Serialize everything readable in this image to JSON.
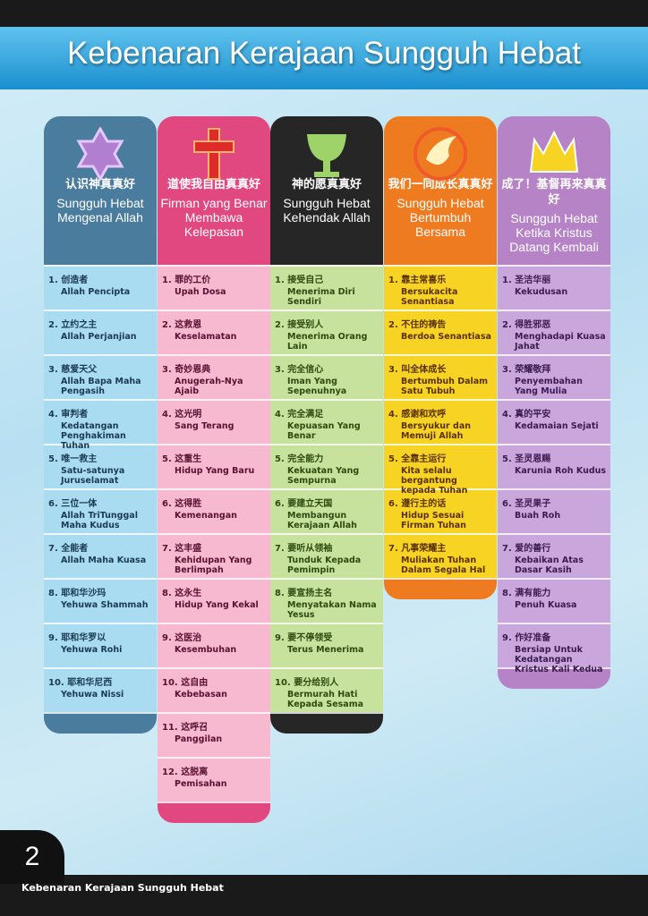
{
  "header": {
    "title": "Kebenaran Kerajaan Sungguh Hebat"
  },
  "columns": [
    {
      "cn": "认识神真真好",
      "ms": "Sungguh Hebat Mengenal Allah",
      "items": [
        {
          "no": "1.",
          "cn": "创造者",
          "ms": "Allah Pencipta"
        },
        {
          "no": "2.",
          "cn": "立约之主",
          "ms": "Allah Perjanjian"
        },
        {
          "no": "3.",
          "cn": "慈爱天父",
          "ms": "Allah Bapa Maha Pengasih"
        },
        {
          "no": "4.",
          "cn": "审判者",
          "ms": "Kedatangan Penghakiman Tuhan"
        },
        {
          "no": "5.",
          "cn": "唯一救主",
          "ms": "Satu-satunya Juruselamat"
        },
        {
          "no": "6.",
          "cn": "三位一体",
          "ms": "Allah TriTunggal Maha Kudus"
        },
        {
          "no": "7.",
          "cn": "全能者",
          "ms": "Allah Maha Kuasa"
        },
        {
          "no": "8.",
          "cn": "耶和华沙玛",
          "ms": "Yehuwa Shammah"
        },
        {
          "no": "9.",
          "cn": "耶和华罗以",
          "ms": "Yehuwa Rohi"
        },
        {
          "no": "10.",
          "cn": "耶和华尼西",
          "ms": "Yehuwa Nissi"
        }
      ]
    },
    {
      "cn": "道使我自由真真好",
      "ms": "Firman yang Benar Membawa Kelepasan",
      "items": [
        {
          "no": "1.",
          "cn": "罪的工价",
          "ms": "Upah Dosa"
        },
        {
          "no": "2.",
          "cn": "这救恩",
          "ms": "Keselamatan"
        },
        {
          "no": "3.",
          "cn": "奇妙恩典",
          "ms": "Anugerah-Nya Ajaib"
        },
        {
          "no": "4.",
          "cn": "这光明",
          "ms": "Sang Terang"
        },
        {
          "no": "5.",
          "cn": "这重生",
          "ms": "Hidup Yang Baru"
        },
        {
          "no": "6.",
          "cn": "这得胜",
          "ms": "Kemenangan"
        },
        {
          "no": "7.",
          "cn": "这丰盛",
          "ms": "Kehidupan Yang Berlimpah"
        },
        {
          "no": "8.",
          "cn": "这永生",
          "ms": "Hidup Yang Kekal"
        },
        {
          "no": "9.",
          "cn": "这医治",
          "ms": "Kesembuhan"
        },
        {
          "no": "10.",
          "cn": "这自由",
          "ms": "Kebebasan"
        },
        {
          "no": "11.",
          "cn": "这呼召",
          "ms": "Panggilan"
        },
        {
          "no": "12.",
          "cn": "这脱离",
          "ms": "Pemisahan"
        }
      ]
    },
    {
      "cn": "神的愿真真好",
      "ms": "Sungguh Hebat Kehendak Allah",
      "items": [
        {
          "no": "1.",
          "cn": "接受自己",
          "ms": "Menerima Diri Sendiri"
        },
        {
          "no": "2.",
          "cn": "接受别人",
          "ms": "Menerima Orang Lain"
        },
        {
          "no": "3.",
          "cn": "完全信心",
          "ms": "Iman Yang Sepenuhnya"
        },
        {
          "no": "4.",
          "cn": "完全满足",
          "ms": "Kepuasan Yang Benar"
        },
        {
          "no": "5.",
          "cn": "完全能力",
          "ms": "Kekuatan Yang Sempurna"
        },
        {
          "no": "6.",
          "cn": "要建立天国",
          "ms": "Membangun Kerajaan Allah"
        },
        {
          "no": "7.",
          "cn": "要听从领袖",
          "ms": "Tunduk Kepada Pemimpin"
        },
        {
          "no": "8.",
          "cn": "要宣扬主名",
          "ms": "Menyatakan Nama Yesus"
        },
        {
          "no": "9.",
          "cn": "要不停领受",
          "ms": "Terus Menerima"
        },
        {
          "no": "10.",
          "cn": "要分给别人",
          "ms": "Bermurah Hati Kepada Sesama"
        }
      ]
    },
    {
      "cn": "我们一同成长真真好",
      "ms": "Sungguh Hebat Bertumbuh Bersama",
      "items": [
        {
          "no": "1.",
          "cn": "靠主常喜乐",
          "ms": "Bersukacita Senantiasa"
        },
        {
          "no": "2.",
          "cn": "不住的祷告",
          "ms": "Berdoa Senantiasa"
        },
        {
          "no": "3.",
          "cn": "叫全体成长",
          "ms": "Bertumbuh Dalam Satu Tubuh"
        },
        {
          "no": "4.",
          "cn": "感谢和欢呼",
          "ms": "Bersyukur dan Memuji Allah"
        },
        {
          "no": "5.",
          "cn": "全靠主运行",
          "ms": "Kita selalu bergantung kepada Tuhan"
        },
        {
          "no": "6.",
          "cn": "遵行主的话",
          "ms": "Hidup Sesuai Firman Tuhan"
        },
        {
          "no": "7.",
          "cn": "凡事荣耀主",
          "ms": "Muliakan Tuhan Dalam Segala Hal"
        }
      ]
    },
    {
      "cn": "成了！基督再来真真好",
      "ms": "Sungguh Hebat Ketika Kristus Datang Kembali",
      "items": [
        {
          "no": "1.",
          "cn": "圣洁华丽",
          "ms": "Kekudusan"
        },
        {
          "no": "2.",
          "cn": "得胜邪恶",
          "ms": "Menghadapi Kuasa Jahat"
        },
        {
          "no": "3.",
          "cn": "荣耀敬拜",
          "ms": "Penyembahan Yang Mulia"
        },
        {
          "no": "4.",
          "cn": "真的平安",
          "ms": "Kedamaian Sejati"
        },
        {
          "no": "5.",
          "cn": "圣灵恩赐",
          "ms": "Karunia Roh Kudus"
        },
        {
          "no": "6.",
          "cn": "圣灵果子",
          "ms": "Buah Roh"
        },
        {
          "no": "7.",
          "cn": "爱的善行",
          "ms": "Kebaikan Atas Dasar Kasih"
        },
        {
          "no": "8.",
          "cn": "满有能力",
          "ms": "Penuh Kuasa"
        },
        {
          "no": "9.",
          "cn": "作好准备",
          "ms": "Bersiap Untuk Kedatangan Kristus Kali Kedua"
        }
      ]
    }
  ],
  "footer": {
    "page": "2",
    "text": "Kebenaran Kerajaan Sungguh Hebat"
  }
}
